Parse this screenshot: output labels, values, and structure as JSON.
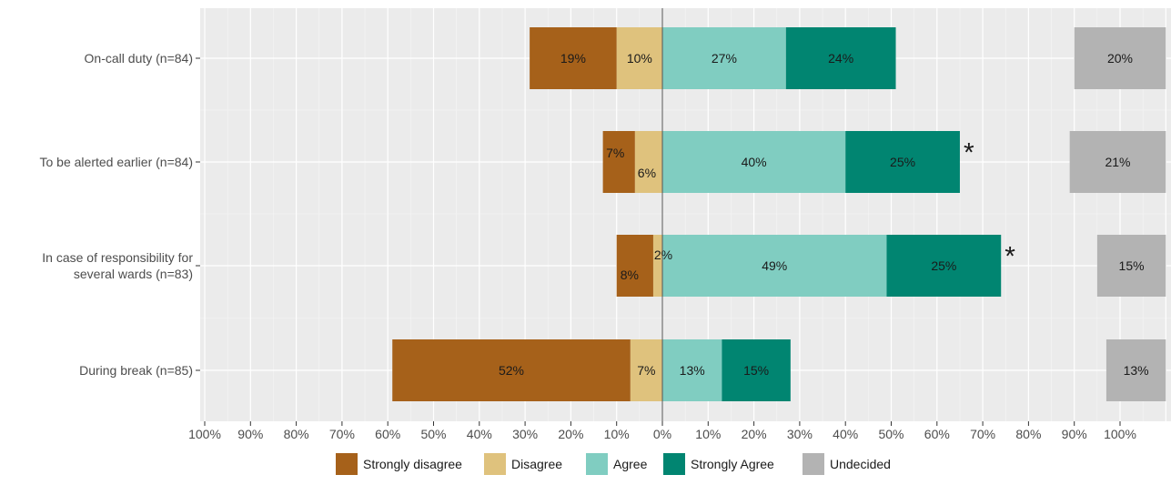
{
  "chart_data": {
    "type": "bar",
    "orientation": "horizontal",
    "stacking": "diverging",
    "categories": [
      [
        "On-call duty (n=84)"
      ],
      [
        "To be alerted earlier (n=84)"
      ],
      [
        "In case of responsibility for",
        "several wards (n=83)"
      ],
      [
        "During break (n=85)"
      ]
    ],
    "series": [
      {
        "name": "Strongly disagree",
        "values": [
          19,
          7,
          8,
          52
        ],
        "labels": [
          "19%",
          "7%",
          "8%",
          "52%"
        ],
        "color": "#a6611a"
      },
      {
        "name": "Disagree",
        "values": [
          10,
          6,
          2,
          7
        ],
        "labels": [
          "10%",
          "6%",
          "2%",
          "7%"
        ],
        "color": "#dfc27d"
      },
      {
        "name": "Agree",
        "values": [
          27,
          40,
          49,
          13
        ],
        "labels": [
          "27%",
          "40%",
          "49%",
          "13%"
        ],
        "color": "#80cdc1"
      },
      {
        "name": "Strongly Agree",
        "values": [
          24,
          25,
          25,
          15
        ],
        "labels": [
          "24%",
          "25%",
          "25%",
          "15%"
        ],
        "color": "#018571"
      },
      {
        "name": "Undecided",
        "values": [
          20,
          21,
          15,
          13
        ],
        "labels": [
          "20%",
          "21%",
          "15%",
          "13%"
        ],
        "color": "#b3b3b3"
      }
    ],
    "x_ticks": [
      "100%",
      "90%",
      "80%",
      "70%",
      "60%",
      "50%",
      "40%",
      "30%",
      "20%",
      "10%",
      "0%",
      "10%",
      "20%",
      "30%",
      "40%",
      "50%",
      "60%",
      "70%",
      "80%",
      "90%",
      "100%"
    ],
    "xlim": [
      -100,
      110
    ],
    "significance_marks": [
      "",
      "*",
      "*",
      ""
    ],
    "legend_position": "bottom",
    "grid": true,
    "panel_background": "#ebebeb"
  }
}
